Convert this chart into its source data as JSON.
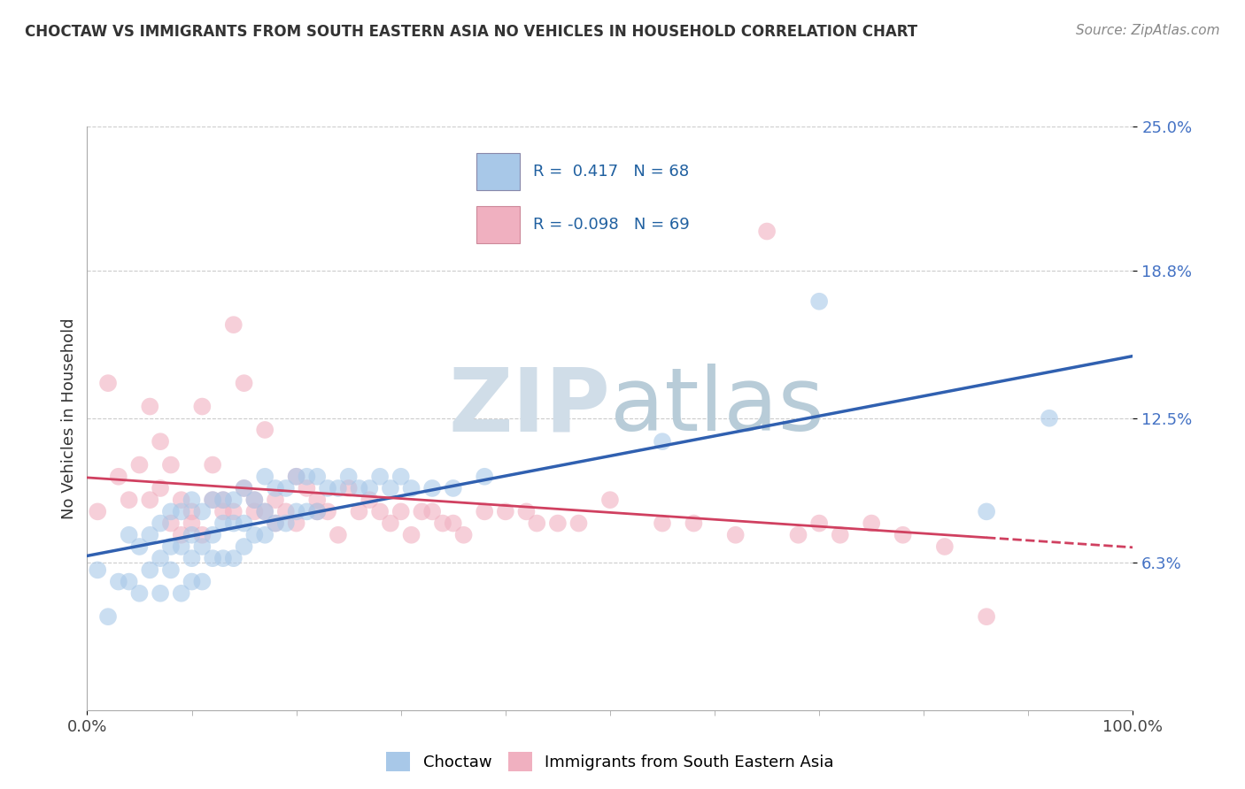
{
  "title": "CHOCTAW VS IMMIGRANTS FROM SOUTH EASTERN ASIA NO VEHICLES IN HOUSEHOLD CORRELATION CHART",
  "source": "Source: ZipAtlas.com",
  "ylabel": "No Vehicles in Household",
  "legend_labels": [
    "Choctaw",
    "Immigrants from South Eastern Asia"
  ],
  "blue_R": 0.417,
  "blue_N": 68,
  "pink_R": -0.098,
  "pink_N": 69,
  "blue_color": "#a8c8e8",
  "pink_color": "#f0b0c0",
  "blue_line_color": "#3060b0",
  "pink_line_color": "#d04060",
  "ylim": [
    0.0,
    0.25
  ],
  "xlim": [
    0.0,
    1.0
  ],
  "yticks": [
    0.063,
    0.125,
    0.188,
    0.25
  ],
  "ytick_labels": [
    "6.3%",
    "12.5%",
    "18.8%",
    "25.0%"
  ],
  "xtick_labels": [
    "0.0%",
    "100.0%"
  ],
  "watermark_zip": "ZIP",
  "watermark_atlas": "atlas",
  "background_color": "#ffffff",
  "blue_x": [
    0.01,
    0.02,
    0.03,
    0.04,
    0.04,
    0.05,
    0.05,
    0.06,
    0.06,
    0.07,
    0.07,
    0.07,
    0.08,
    0.08,
    0.08,
    0.09,
    0.09,
    0.09,
    0.1,
    0.1,
    0.1,
    0.1,
    0.11,
    0.11,
    0.11,
    0.12,
    0.12,
    0.12,
    0.13,
    0.13,
    0.13,
    0.14,
    0.14,
    0.14,
    0.15,
    0.15,
    0.15,
    0.16,
    0.16,
    0.17,
    0.17,
    0.17,
    0.18,
    0.18,
    0.19,
    0.19,
    0.2,
    0.2,
    0.21,
    0.21,
    0.22,
    0.22,
    0.23,
    0.24,
    0.25,
    0.26,
    0.27,
    0.28,
    0.29,
    0.3,
    0.31,
    0.33,
    0.35,
    0.38,
    0.55,
    0.7,
    0.86,
    0.92
  ],
  "blue_y": [
    0.06,
    0.04,
    0.055,
    0.055,
    0.075,
    0.05,
    0.07,
    0.06,
    0.075,
    0.05,
    0.065,
    0.08,
    0.06,
    0.07,
    0.085,
    0.05,
    0.07,
    0.085,
    0.055,
    0.065,
    0.075,
    0.09,
    0.055,
    0.07,
    0.085,
    0.065,
    0.075,
    0.09,
    0.065,
    0.08,
    0.09,
    0.065,
    0.08,
    0.09,
    0.07,
    0.08,
    0.095,
    0.075,
    0.09,
    0.075,
    0.085,
    0.1,
    0.08,
    0.095,
    0.08,
    0.095,
    0.085,
    0.1,
    0.085,
    0.1,
    0.085,
    0.1,
    0.095,
    0.095,
    0.1,
    0.095,
    0.095,
    0.1,
    0.095,
    0.1,
    0.095,
    0.095,
    0.095,
    0.1,
    0.115,
    0.175,
    0.085,
    0.125
  ],
  "pink_x": [
    0.01,
    0.02,
    0.03,
    0.04,
    0.05,
    0.06,
    0.06,
    0.07,
    0.07,
    0.08,
    0.08,
    0.09,
    0.09,
    0.1,
    0.1,
    0.11,
    0.11,
    0.12,
    0.12,
    0.13,
    0.13,
    0.14,
    0.14,
    0.15,
    0.15,
    0.16,
    0.16,
    0.17,
    0.17,
    0.18,
    0.18,
    0.19,
    0.2,
    0.2,
    0.21,
    0.22,
    0.22,
    0.23,
    0.24,
    0.25,
    0.26,
    0.27,
    0.28,
    0.29,
    0.3,
    0.31,
    0.32,
    0.33,
    0.34,
    0.35,
    0.36,
    0.38,
    0.4,
    0.42,
    0.43,
    0.45,
    0.47,
    0.5,
    0.55,
    0.58,
    0.62,
    0.65,
    0.68,
    0.7,
    0.72,
    0.75,
    0.78,
    0.82,
    0.86
  ],
  "pink_y": [
    0.085,
    0.14,
    0.1,
    0.09,
    0.105,
    0.09,
    0.13,
    0.095,
    0.115,
    0.08,
    0.105,
    0.075,
    0.09,
    0.085,
    0.08,
    0.13,
    0.075,
    0.09,
    0.105,
    0.085,
    0.09,
    0.165,
    0.085,
    0.14,
    0.095,
    0.09,
    0.085,
    0.12,
    0.085,
    0.08,
    0.09,
    0.085,
    0.08,
    0.1,
    0.095,
    0.085,
    0.09,
    0.085,
    0.075,
    0.095,
    0.085,
    0.09,
    0.085,
    0.08,
    0.085,
    0.075,
    0.085,
    0.085,
    0.08,
    0.08,
    0.075,
    0.085,
    0.085,
    0.085,
    0.08,
    0.08,
    0.08,
    0.09,
    0.08,
    0.08,
    0.075,
    0.205,
    0.075,
    0.08,
    0.075,
    0.08,
    0.075,
    0.07,
    0.04
  ]
}
